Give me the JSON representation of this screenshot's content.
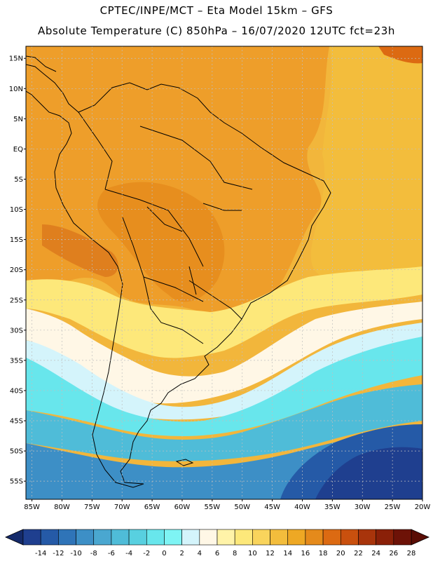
{
  "header": {
    "line1": "CPTEC/INPE/MCT –  Eta Model 15km – GFS",
    "line2": "Absolute Temperature (C) 850hPa – 16/07/2020 12UTC fct=23h"
  },
  "axes": {
    "lat_labels": [
      "15N",
      "10N",
      "5N",
      "EQ",
      "5S",
      "10S",
      "15S",
      "20S",
      "25S",
      "30S",
      "35S",
      "40S",
      "45S",
      "50S",
      "55S"
    ],
    "lat_values": [
      15,
      10,
      5,
      0,
      -5,
      -10,
      -15,
      -20,
      -25,
      -30,
      -35,
      -40,
      -45,
      -50,
      -55
    ],
    "lon_labels": [
      "85W",
      "80W",
      "75W",
      "70W",
      "65W",
      "60W",
      "55W",
      "50W",
      "45W",
      "40W",
      "35W",
      "30W",
      "25W",
      "20W"
    ],
    "lon_values": [
      -85,
      -80,
      -75,
      -70,
      -65,
      -60,
      -55,
      -50,
      -45,
      -40,
      -35,
      -30,
      -25,
      -20
    ],
    "lat_range": [
      -58,
      17
    ],
    "lon_range": [
      -86,
      -20
    ]
  },
  "colorbar": {
    "labels": [
      "-14",
      "-12",
      "-10",
      "-8",
      "-6",
      "-4",
      "-2",
      "0",
      "2",
      "4",
      "6",
      "8",
      "10",
      "12",
      "14",
      "16",
      "18",
      "20",
      "22",
      "24",
      "26",
      "28"
    ],
    "colors": [
      "#1f3f8f",
      "#255aa7",
      "#2f74b8",
      "#3d8fc6",
      "#4aa7d0",
      "#4fbcd8",
      "#58d0e0",
      "#68e6ec",
      "#7ef4f4",
      "#d4f4fb",
      "#fff7e6",
      "#fff3a8",
      "#fde87a",
      "#f9d45c",
      "#f3bd3c",
      "#eea824",
      "#e58a1b",
      "#dc6a12",
      "#c9500e",
      "#a8340b",
      "#8a2008",
      "#6d1207"
    ],
    "arrow_left_color": "#142a6a",
    "arrow_right_color": "#5a0d05"
  },
  "map": {
    "background_color": "#f2b63b",
    "bands": [
      {
        "name": "tropics-orange",
        "color": "#ee9e2a"
      },
      {
        "name": "interior-dark",
        "color": "#e58a1b"
      },
      {
        "name": "atlantic-gold",
        "color": "#f3bd3c"
      },
      {
        "name": "light-yellow",
        "color": "#fde87a"
      },
      {
        "name": "pale",
        "color": "#fff7e6"
      },
      {
        "name": "light-cyan",
        "color": "#d4f4fb"
      },
      {
        "name": "cyan",
        "color": "#68e6ec"
      },
      {
        "name": "teal",
        "color": "#4fbcd8"
      },
      {
        "name": "mid-blue",
        "color": "#3d8fc6"
      },
      {
        "name": "deep-blue",
        "color": "#255aa7"
      },
      {
        "name": "darkest-blue",
        "color": "#1f3f8f"
      }
    ]
  }
}
